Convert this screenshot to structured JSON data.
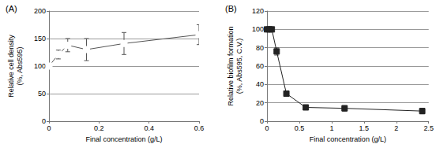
{
  "chart_data": [
    {
      "type": "line",
      "title": "(A)",
      "x_label": "Final concentration (g/L)",
      "y_label": "Relative cell density\n(%, Abs595)",
      "x": [
        0,
        0.0375,
        0.075,
        0.15,
        0.3,
        0.6
      ],
      "values": [
        100,
        121,
        138,
        130,
        141,
        157
      ],
      "errors": [
        0,
        8,
        12,
        20,
        20,
        18
      ],
      "xlim": [
        0,
        0.6
      ],
      "xticks": [
        0,
        0.2,
        0.4,
        0.6
      ],
      "ylim": [
        0,
        200
      ],
      "yticks": [
        0,
        50,
        100,
        150,
        200
      ],
      "grid": true,
      "marker": "open square",
      "color": "#555555"
    },
    {
      "type": "line",
      "title": "(B)",
      "x_label": "Final concentration (g/L)",
      "y_label": "Relative biofilm formation\n(%, Abs595, C.V.)",
      "x": [
        0,
        0.0375,
        0.075,
        0.15,
        0.3,
        0.6,
        1.2,
        2.4
      ],
      "values": [
        100,
        100,
        100,
        76,
        30,
        15,
        14,
        11
      ],
      "errors": [
        1,
        1,
        1,
        4,
        3,
        1,
        3,
        3
      ],
      "xlim": [
        0,
        2.5
      ],
      "xticks": [
        0,
        0.5,
        1,
        1.5,
        2,
        2.5
      ],
      "ylim": [
        0,
        120
      ],
      "yticks": [
        0,
        20,
        40,
        60,
        80,
        100,
        120
      ],
      "grid": true,
      "marker": "square",
      "color": "#222222"
    }
  ]
}
